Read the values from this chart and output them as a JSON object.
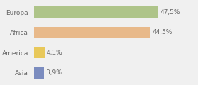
{
  "categories": [
    "Europa",
    "Africa",
    "America",
    "Asia"
  ],
  "values": [
    47.5,
    44.5,
    4.1,
    3.9
  ],
  "labels": [
    "47,5%",
    "44,5%",
    "4,1%",
    "3,9%"
  ],
  "bar_colors": [
    "#aec489",
    "#e8b98a",
    "#e8c85a",
    "#7b8cbf"
  ],
  "background_color": "#f0f0f0",
  "text_color": "#666666",
  "xlim": [
    0,
    62
  ],
  "bar_height": 0.55,
  "label_fontsize": 6.5,
  "ylabel_fontsize": 6.5
}
